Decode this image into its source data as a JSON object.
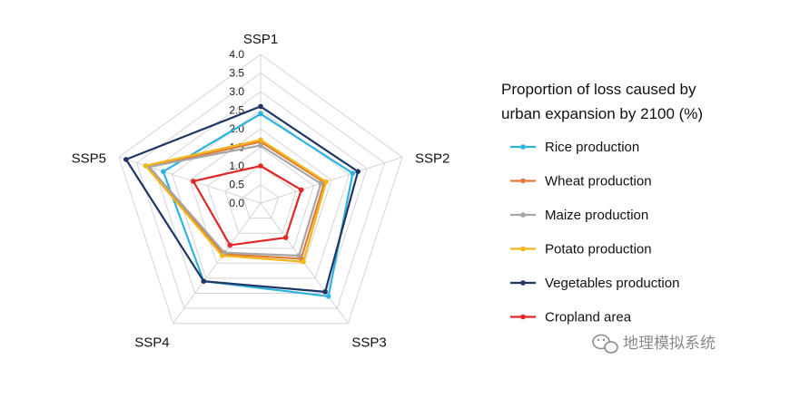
{
  "chart_data": {
    "type": "radar",
    "axes": [
      "SSP1",
      "SSP2",
      "SSP3",
      "SSP4",
      "SSP5"
    ],
    "rmin": 0.0,
    "rmax": 4.0,
    "ticks": [
      "0.0",
      "0.5",
      "1.0",
      "1.5",
      "2.0",
      "2.5",
      "3.0",
      "3.5",
      "4.0"
    ],
    "tick_values": [
      0,
      0.5,
      1.0,
      1.5,
      2.0,
      2.5,
      3.0,
      3.5,
      4.0
    ],
    "grid": true,
    "legend_title_lines": [
      "Proportion of loss caused by",
      "urban expansion by 2100 (%)"
    ],
    "legend_position": "right",
    "series": [
      {
        "name": "Rice production",
        "color": "#2eb3e0",
        "values": [
          2.4,
          2.6,
          3.1,
          2.6,
          2.75
        ]
      },
      {
        "name": "Wheat production",
        "color": "#e07b39",
        "values": [
          1.65,
          1.8,
          1.85,
          1.7,
          3.15
        ]
      },
      {
        "name": "Maize production",
        "color": "#a6a6a6",
        "values": [
          1.55,
          1.7,
          1.75,
          1.65,
          3.15
        ]
      },
      {
        "name": "Potato production",
        "color": "#f2b619",
        "values": [
          1.7,
          1.85,
          1.95,
          1.75,
          3.25
        ]
      },
      {
        "name": "Vegetables production",
        "color": "#1f3664",
        "values": [
          2.6,
          2.75,
          2.95,
          2.6,
          3.8
        ]
      },
      {
        "name": "Cropland area",
        "color": "#e02826",
        "values": [
          1.0,
          1.15,
          1.15,
          1.4,
          1.9
        ]
      }
    ]
  },
  "watermark": {
    "icon": "wechat-icon",
    "text": "地理模拟系统"
  }
}
